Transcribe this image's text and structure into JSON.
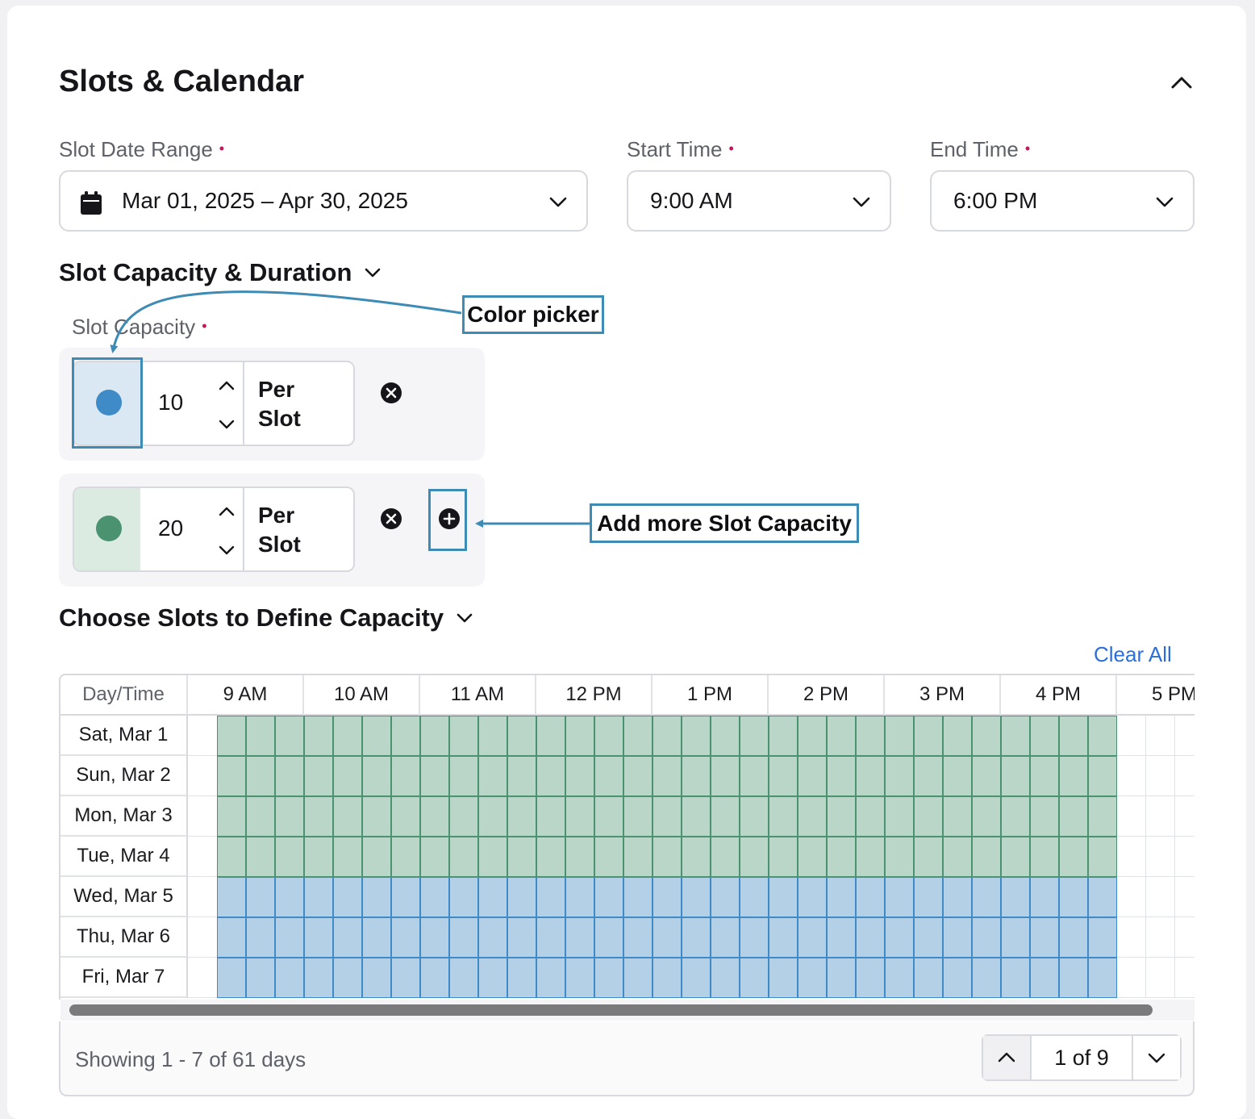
{
  "section": {
    "title": "Slots & Calendar"
  },
  "fields": {
    "date_range": {
      "label": "Slot Date Range",
      "value": "Mar 01, 2025 – Apr 30, 2025"
    },
    "start_time": {
      "label": "Start Time",
      "value": "9:00 AM"
    },
    "end_time": {
      "label": "End Time",
      "value": "6:00 PM"
    },
    "required_mark": "•"
  },
  "capacity": {
    "title": "Slot Capacity & Duration",
    "label": "Slot Capacity",
    "rows": [
      {
        "value": "10",
        "unit_line1": "Per",
        "unit_line2": "Slot",
        "color": "#3e8bc8",
        "swatch_bg": "#d9e8f3"
      },
      {
        "value": "20",
        "unit_line1": "Per",
        "unit_line2": "Slot",
        "color": "#4a9270",
        "swatch_bg": "#dcebe2"
      }
    ]
  },
  "annotations": {
    "color_picker": "Color picker",
    "add_more": "Add more Slot Capacity",
    "color": "#3e8bb5"
  },
  "schedule": {
    "title": "Choose Slots to Define Capacity",
    "clear_all": "Clear All",
    "corner_header": "Day/Time",
    "time_headers": [
      "9 AM",
      "10 AM",
      "11 AM",
      "12 PM",
      "1 PM",
      "2 PM",
      "3 PM",
      "4 PM",
      "5 PM"
    ],
    "days": [
      {
        "label": "Sat, Mar 1",
        "capacity_row": 1
      },
      {
        "label": "Sun, Mar 2",
        "capacity_row": 1
      },
      {
        "label": "Mon, Mar 3",
        "capacity_row": 1
      },
      {
        "label": "Tue, Mar 4",
        "capacity_row": 1
      },
      {
        "label": "Wed, Mar 5",
        "capacity_row": 0
      },
      {
        "label": "Thu, Mar 6",
        "capacity_row": 0
      },
      {
        "label": "Fri, Mar 7",
        "capacity_row": 0
      }
    ],
    "colors": {
      "green_fill": "#bad6c8",
      "green_border": "#4a9270",
      "blue_fill": "#b4d0e7",
      "blue_border": "#3e8bc8"
    }
  },
  "footer": {
    "showing": "Showing 1 - 7 of 61 days",
    "page": "1 of 9"
  }
}
